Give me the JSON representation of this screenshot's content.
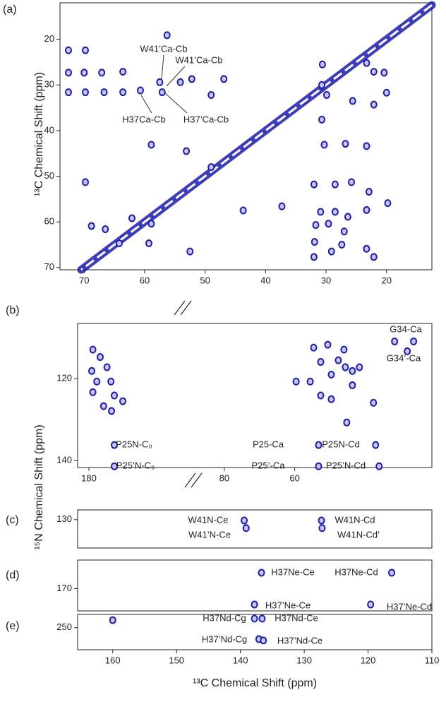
{
  "chart_data": [
    {
      "type": "contour",
      "panel": "(a)",
      "y_label": "¹³C Chemical Shift  (ppm)",
      "xlim": [
        74,
        12.5
      ],
      "xticks": [
        70,
        60,
        50,
        40,
        30,
        20
      ],
      "ylim": [
        12,
        70.5
      ],
      "yticks": [
        20,
        30,
        40,
        50,
        60,
        70
      ],
      "diagonal": true,
      "series": [
        {
          "color": "#1c1cb0",
          "x": [
            56.3,
            72.6,
            69.8,
            72.6,
            70,
            67.1,
            63.6,
            72.6,
            69.8,
            66.7,
            63.6,
            60.7,
            57.1,
            57.5,
            54.1,
            52.2,
            46.9,
            49,
            58.9,
            53.1,
            49,
            43.7,
            37.3,
            62.1,
            58.9,
            59.3,
            68.8,
            66.5,
            64.2,
            69.8,
            52.5,
            30.6,
            30.7,
            29.9,
            30.7,
            23.3,
            22.1,
            20.4,
            20,
            25.6,
            22.1,
            30.3,
            26.8,
            23.3,
            32,
            28.5,
            25.8,
            22.9,
            19.8,
            30.9,
            28.5,
            26.4,
            23.3,
            31.7,
            29.6,
            27,
            31.9,
            29.1,
            27.4,
            23.3,
            22.1,
            32
          ],
          "y": [
            19.1,
            22.4,
            22.4,
            27.3,
            27.3,
            27.3,
            27.1,
            31.6,
            31.6,
            31.6,
            31.6,
            31.2,
            31.6,
            29.4,
            29.4,
            28.7,
            28.7,
            32.2,
            43.1,
            44.5,
            48,
            57.5,
            56.6,
            59.2,
            60.4,
            64.7,
            60.9,
            61.6,
            64.7,
            51.3,
            66.5,
            25.5,
            30,
            32.2,
            37.6,
            25.2,
            27.1,
            27.3,
            31.7,
            33.5,
            34.3,
            43.1,
            42.9,
            43.4,
            51.8,
            51.8,
            51.3,
            53.4,
            55.9,
            57.8,
            57.8,
            58.9,
            57.4,
            60.7,
            60.4,
            62.1,
            64.4,
            66.5,
            65,
            65.9,
            67.7,
            67.7
          ]
        }
      ],
      "annotations": [
        "W41’Ca-Cb",
        "W41’Ca-Cb",
        "H37Ca-Cb",
        "H37’Ca-Cb"
      ]
    },
    {
      "type": "contour",
      "panel": "(b)",
      "y_label": "¹⁵N Chemical Shift  (ppm)",
      "xlim": [
        182,
        162
      ],
      "xticks": [
        180
      ],
      "x2lim": [
        86,
        21
      ],
      "x2ticks": [
        80,
        60
      ],
      "ylim": [
        106.5,
        141.7
      ],
      "yticks": [
        120,
        140
      ],
      "series": [
        {
          "color": "#1c1cb0",
          "x": [
            179.3,
            179.5,
            178,
            176.8,
            178.6,
            176.1,
            179.3,
            175.5,
            177.4,
            174,
            176,
            175.5,
            175.5
          ],
          "y": [
            112.9,
            118.1,
            114.7,
            117.2,
            120.7,
            120.7,
            123.3,
            124.1,
            126.7,
            125.5,
            127.9,
            136.2,
            141.4
          ]
        },
        {
          "color": "#1c1cb0",
          "axis": "x2",
          "x": [
            31.6,
            26.2,
            28,
            54.6,
            50.6,
            46,
            52.6,
            47.6,
            59.6,
            55.6,
            49.6,
            45.6,
            43.6,
            41.6,
            43.6,
            52.6,
            49.6,
            37.6,
            45.2,
            53.2,
            53.2,
            37,
            36
          ],
          "y": [
            110.9,
            110.9,
            113.3,
            112.4,
            111.7,
            112.9,
            115.9,
            115.5,
            120.7,
            120.7,
            119,
            117.2,
            118.1,
            117.2,
            121.6,
            124.1,
            125,
            125.9,
            130.7,
            136.2,
            141.4,
            136.2,
            141.4
          ]
        }
      ],
      "annotations": [
        "G34-Ca",
        "G34’-Ca",
        "P25N-C₀",
        "P25’N-C₀",
        "P25-Ca",
        "P25’-Ca",
        "P25N-Cd",
        "P25’N-Cd"
      ]
    },
    {
      "type": "contour",
      "panel": "(c)",
      "xlim": [
        165.5,
        110
      ],
      "ylim": [
        127.7,
        136.7
      ],
      "yticks": [
        130
      ],
      "series": [
        {
          "color": "#1c1cb0",
          "x": [
            139.4,
            139.1,
            127.3,
            127.2
          ],
          "y": [
            130.2,
            132,
            130.2,
            132
          ]
        }
      ],
      "annotations": [
        "W41N-Ce",
        "W41’N-Ce",
        "W41N-Cd",
        "W41N-Cd’"
      ]
    },
    {
      "type": "contour",
      "panel": "(d)",
      "xlim": [
        165.5,
        110
      ],
      "ylim": [
        161,
        177
      ],
      "yticks": [
        170
      ],
      "series": [
        {
          "color": "#1c1cb0",
          "x": [
            136.7,
            137.8,
            116.3,
            119.6
          ],
          "y": [
            165,
            175,
            165,
            175
          ]
        }
      ],
      "annotations": [
        "H37Ne-Ce",
        "H37Ne-Cd",
        "H37’Ne-Ce",
        "H37’Ne-Cd"
      ]
    },
    {
      "type": "contour",
      "panel": "(e)",
      "x_label": "¹³C Chemical Shift  (ppm)",
      "xlim": [
        165.5,
        110
      ],
      "xticks": [
        160,
        150,
        140,
        130,
        120,
        110
      ],
      "ylim": [
        244,
        260
      ],
      "yticks": [
        250
      ],
      "series": [
        {
          "color": "#1c1cb0",
          "x": [
            160,
            137.8,
            136.6,
            137.1,
            136.4
          ],
          "y": [
            246.6,
            245.9,
            245.9,
            255.2,
            255.8
          ]
        }
      ],
      "annotations": [
        "H37Nd-Cg",
        "H37Nd-Ce",
        "H37’Nd-Cg",
        "H37’Nd-Ce"
      ]
    }
  ]
}
